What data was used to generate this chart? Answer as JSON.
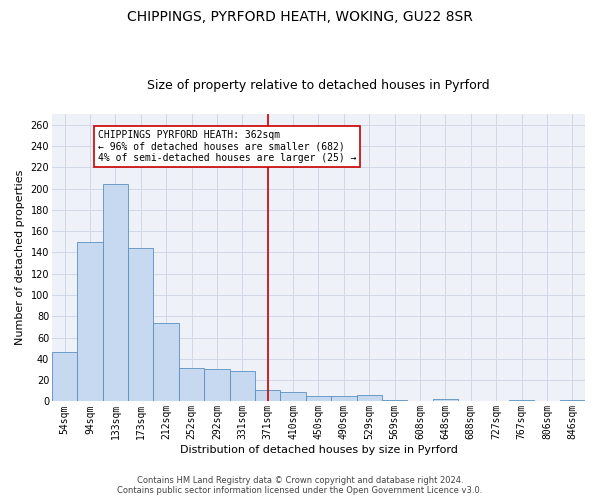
{
  "title": "CHIPPINGS, PYRFORD HEATH, WOKING, GU22 8SR",
  "subtitle": "Size of property relative to detached houses in Pyrford",
  "xlabel": "Distribution of detached houses by size in Pyrford",
  "ylabel": "Number of detached properties",
  "categories": [
    "54sqm",
    "94sqm",
    "133sqm",
    "173sqm",
    "212sqm",
    "252sqm",
    "292sqm",
    "331sqm",
    "371sqm",
    "410sqm",
    "450sqm",
    "490sqm",
    "529sqm",
    "569sqm",
    "608sqm",
    "648sqm",
    "688sqm",
    "727sqm",
    "767sqm",
    "806sqm",
    "846sqm"
  ],
  "values": [
    46,
    150,
    204,
    144,
    74,
    31,
    30,
    29,
    11,
    9,
    5,
    5,
    6,
    1,
    0,
    2,
    0,
    0,
    1,
    0,
    1
  ],
  "bar_color": "#c6d9f0",
  "bar_edge_color": "#5a8fc0",
  "vline_x_index": 8,
  "vline_color": "#cc0000",
  "annotation_box_text": "CHIPPINGS PYRFORD HEATH: 362sqm\n← 96% of detached houses are smaller (682)\n4% of semi-detached houses are larger (25) →",
  "annotation_box_color": "#cc0000",
  "grid_color": "#d0d8e8",
  "bg_color": "#eef2f8",
  "ylim": [
    0,
    270
  ],
  "yticks": [
    0,
    20,
    40,
    60,
    80,
    100,
    120,
    140,
    160,
    180,
    200,
    220,
    240,
    260
  ],
  "footer_line1": "Contains HM Land Registry data © Crown copyright and database right 2024.",
  "footer_line2": "Contains public sector information licensed under the Open Government Licence v3.0.",
  "title_fontsize": 10,
  "subtitle_fontsize": 9,
  "xlabel_fontsize": 8,
  "ylabel_fontsize": 8,
  "annotation_fontsize": 7,
  "tick_fontsize": 7
}
